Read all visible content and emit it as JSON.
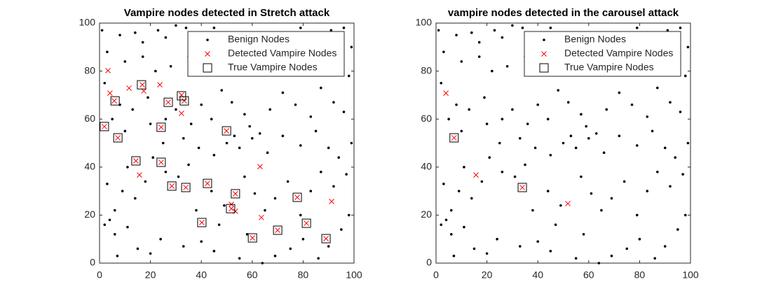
{
  "chart_data": [
    {
      "type": "scatter",
      "title": "Vampire nodes detected in Stretch attack",
      "xlim": [
        0,
        100
      ],
      "ylim": [
        0,
        100
      ],
      "xticks": [
        0,
        20,
        40,
        60,
        80,
        100
      ],
      "yticks": [
        0,
        20,
        40,
        60,
        80,
        100
      ],
      "legend": "northeast",
      "series": [
        {
          "name": "Benign Nodes",
          "color": "#000000",
          "marker": "dot",
          "x": [
            1,
            8,
            14,
            17,
            23,
            26,
            30,
            34,
            37,
            45,
            49,
            56,
            60,
            66,
            72,
            79,
            84,
            91,
            96,
            99,
            3,
            10,
            17,
            22,
            28,
            35,
            42,
            47,
            54,
            62,
            69,
            74,
            81,
            88,
            94,
            98,
            2,
            8,
            13,
            19,
            26,
            30,
            36,
            40,
            44,
            48,
            52,
            57,
            59,
            63,
            67,
            72,
            77,
            83,
            87,
            92,
            96,
            5,
            10,
            20,
            25,
            33,
            39,
            45,
            50,
            53,
            55,
            60,
            66,
            72,
            79,
            85,
            90,
            94,
            99,
            3,
            6,
            9,
            11,
            14,
            18,
            21,
            26,
            31,
            35,
            38,
            44,
            47,
            49,
            57,
            61,
            65,
            69,
            74,
            79,
            83,
            87,
            92,
            97,
            2,
            6,
            11,
            15,
            20,
            24,
            33,
            40,
            45,
            55,
            58,
            64,
            69,
            75,
            80,
            86,
            90,
            95,
            98,
            4,
            7
          ],
          "y": [
            97,
            95,
            96,
            92,
            97,
            94,
            99,
            98,
            94,
            98,
            94,
            95,
            90,
            96,
            93,
            98,
            95,
            97,
            98,
            90,
            88,
            84,
            86,
            80,
            82,
            86,
            83,
            79,
            84,
            87,
            80,
            85,
            82,
            86,
            83,
            78,
            75,
            66,
            64,
            69,
            60,
            64,
            58,
            66,
            60,
            72,
            67,
            62,
            57,
            54,
            64,
            71,
            66,
            61,
            73,
            67,
            63,
            60,
            55,
            58,
            50,
            52,
            48,
            45,
            50,
            53,
            48,
            52,
            46,
            53,
            49,
            55,
            48,
            44,
            50,
            33,
            22,
            30,
            40,
            27,
            34,
            44,
            38,
            36,
            41,
            22,
            30,
            16,
            24,
            36,
            29,
            22,
            27,
            34,
            20,
            30,
            38,
            32,
            37,
            16,
            12,
            15,
            6,
            4,
            10,
            7,
            9,
            5,
            2,
            12,
            0,
            3,
            6,
            10,
            2,
            7,
            14,
            20,
            18,
            3
          ]
        },
        {
          "name": "Detected Vampire Nodes",
          "color": "#ff0000",
          "marker": "x",
          "x": [
            3.3,
            4.1,
            5.8,
            11.6,
            16.8,
            17.4,
            23.7,
            27,
            32.2,
            32.2,
            33.3,
            1.9,
            7.2,
            24.2,
            49.9,
            14.3,
            24.2,
            15.7,
            63.1,
            28.4,
            33.9,
            42.4,
            53.4,
            51.8,
            51.8,
            53.4,
            63.6,
            77.7,
            91.2,
            40.2,
            81.3,
            60.1,
            70,
            89
          ],
          "y": [
            80.2,
            70.8,
            67.6,
            72.9,
            74.3,
            71.7,
            74.3,
            67,
            70,
            62.4,
            67.6,
            56.9,
            52.2,
            56.6,
            55.1,
            42.6,
            42,
            36.7,
            40.2,
            32.1,
            31.5,
            33.2,
            28.9,
            24.5,
            22.7,
            21.6,
            19,
            27.4,
            25.7,
            16.9,
            16.6,
            10.5,
            13.7,
            10.2
          ]
        },
        {
          "name": "True Vampire Nodes",
          "color": "#000000",
          "marker": "square",
          "x": [
            6.1,
            16.5,
            27,
            32.2,
            33.3,
            1.9,
            7.2,
            24.2,
            49.9,
            14.3,
            24.2,
            28.4,
            33.9,
            42.4,
            53.4,
            51.5,
            77.7,
            40.2,
            81.3,
            60.1,
            70,
            89
          ],
          "y": [
            67.6,
            74.3,
            67,
            69.7,
            67.6,
            56.9,
            52.2,
            56.6,
            55.1,
            42.6,
            42,
            32.1,
            31.5,
            33.2,
            28.9,
            22.7,
            27.4,
            16.9,
            16.6,
            10.5,
            13.7,
            10.2
          ]
        }
      ]
    },
    {
      "type": "scatter",
      "title": "vampire nodes detected in the carousel attack",
      "xlim": [
        0,
        100
      ],
      "ylim": [
        0,
        100
      ],
      "xticks": [
        0,
        20,
        40,
        60,
        80,
        100
      ],
      "yticks": [
        0,
        20,
        40,
        60,
        80,
        100
      ],
      "legend": "northeast",
      "series": [
        {
          "name": "Benign Nodes",
          "color": "#000000",
          "marker": "dot",
          "x": [
            1,
            8,
            14,
            17,
            23,
            26,
            30,
            34,
            37,
            45,
            49,
            56,
            60,
            66,
            72,
            79,
            84,
            91,
            96,
            99,
            3,
            10,
            17,
            22,
            28,
            35,
            42,
            47,
            54,
            62,
            69,
            74,
            81,
            88,
            94,
            98,
            2,
            8,
            13,
            19,
            26,
            30,
            36,
            40,
            44,
            48,
            52,
            57,
            59,
            63,
            67,
            72,
            77,
            83,
            87,
            92,
            96,
            5,
            10,
            20,
            25,
            33,
            39,
            45,
            50,
            53,
            55,
            60,
            66,
            72,
            79,
            85,
            90,
            94,
            99,
            3,
            6,
            9,
            11,
            14,
            18,
            21,
            26,
            31,
            35,
            38,
            44,
            47,
            49,
            57,
            61,
            65,
            69,
            74,
            79,
            83,
            87,
            92,
            97,
            2,
            6,
            11,
            15,
            20,
            24,
            33,
            40,
            45,
            55,
            58,
            64,
            69,
            75,
            80,
            86,
            90,
            95,
            98,
            4,
            7
          ],
          "y": [
            97,
            95,
            96,
            92,
            97,
            94,
            99,
            98,
            94,
            98,
            94,
            95,
            90,
            96,
            93,
            98,
            95,
            97,
            98,
            90,
            88,
            84,
            86,
            80,
            82,
            86,
            83,
            79,
            84,
            87,
            80,
            85,
            82,
            86,
            83,
            78,
            75,
            66,
            64,
            69,
            60,
            64,
            58,
            66,
            60,
            72,
            67,
            62,
            57,
            54,
            64,
            71,
            66,
            61,
            73,
            67,
            63,
            60,
            55,
            58,
            50,
            52,
            48,
            45,
            50,
            53,
            48,
            52,
            46,
            53,
            49,
            55,
            48,
            44,
            50,
            33,
            22,
            30,
            40,
            27,
            34,
            44,
            38,
            36,
            41,
            22,
            30,
            16,
            24,
            36,
            29,
            22,
            27,
            34,
            20,
            30,
            38,
            32,
            37,
            16,
            12,
            15,
            6,
            4,
            10,
            7,
            9,
            5,
            2,
            12,
            0,
            3,
            6,
            10,
            2,
            7,
            14,
            20,
            18,
            3
          ]
        },
        {
          "name": "Detected Vampire Nodes",
          "color": "#ff0000",
          "marker": "x",
          "x": [
            3.9,
            7.1,
            15.7,
            33.9,
            51.8
          ],
          "y": [
            70.8,
            52.2,
            36.7,
            31.5,
            24.8
          ]
        },
        {
          "name": "True Vampire Nodes",
          "color": "#000000",
          "marker": "square",
          "x": [
            7.1,
            33.9
          ],
          "y": [
            52.2,
            31.5
          ]
        }
      ]
    }
  ]
}
